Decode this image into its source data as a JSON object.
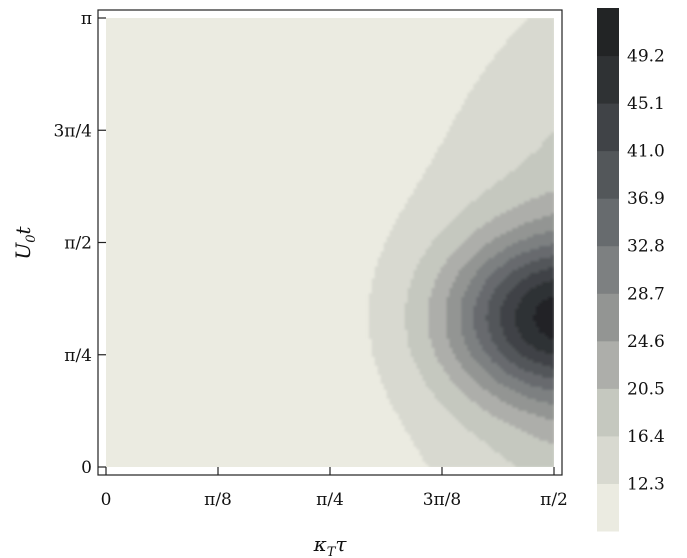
{
  "chart_data": {
    "type": "contour",
    "xlabel": "κ_T τ",
    "ylabel": "U_0 t",
    "xlim": [
      0,
      1.5708
    ],
    "ylim": [
      0,
      3.1416
    ],
    "x_ticks": [
      {
        "value": 0,
        "label": "0"
      },
      {
        "value": 0.3927,
        "label": "π/8"
      },
      {
        "value": 0.7854,
        "label": "π/4"
      },
      {
        "value": 1.1781,
        "label": "3π/8"
      },
      {
        "value": 1.5708,
        "label": "π/2"
      }
    ],
    "y_ticks": [
      {
        "value": 0,
        "label": "0"
      },
      {
        "value": 0.7854,
        "label": "π/4"
      },
      {
        "value": 1.5708,
        "label": "π/2"
      },
      {
        "value": 2.3562,
        "label": "3π/4"
      },
      {
        "value": 3.1416,
        "label": "π"
      }
    ],
    "colorbar": {
      "levels": [
        8.2,
        12.3,
        16.4,
        20.5,
        24.6,
        28.7,
        32.8,
        36.9,
        41.0,
        45.1,
        49.2,
        53.3
      ],
      "tick_labels": [
        "12.3",
        "16.4",
        "20.5",
        "24.6",
        "28.7",
        "32.8",
        "36.9",
        "41.0",
        "45.1",
        "49.2"
      ],
      "colors": [
        "#ebebe1",
        "#d8d9d0",
        "#c5c8bf",
        "#adaeaa",
        "#939593",
        "#7d8081",
        "#676b6e",
        "#53575a",
        "#404347",
        "#2f3234",
        "#222425"
      ]
    },
    "peak": {
      "x": 1.5708,
      "y": 1.05,
      "value": 51.5
    },
    "grid": false,
    "legend": "colorbar-right"
  }
}
